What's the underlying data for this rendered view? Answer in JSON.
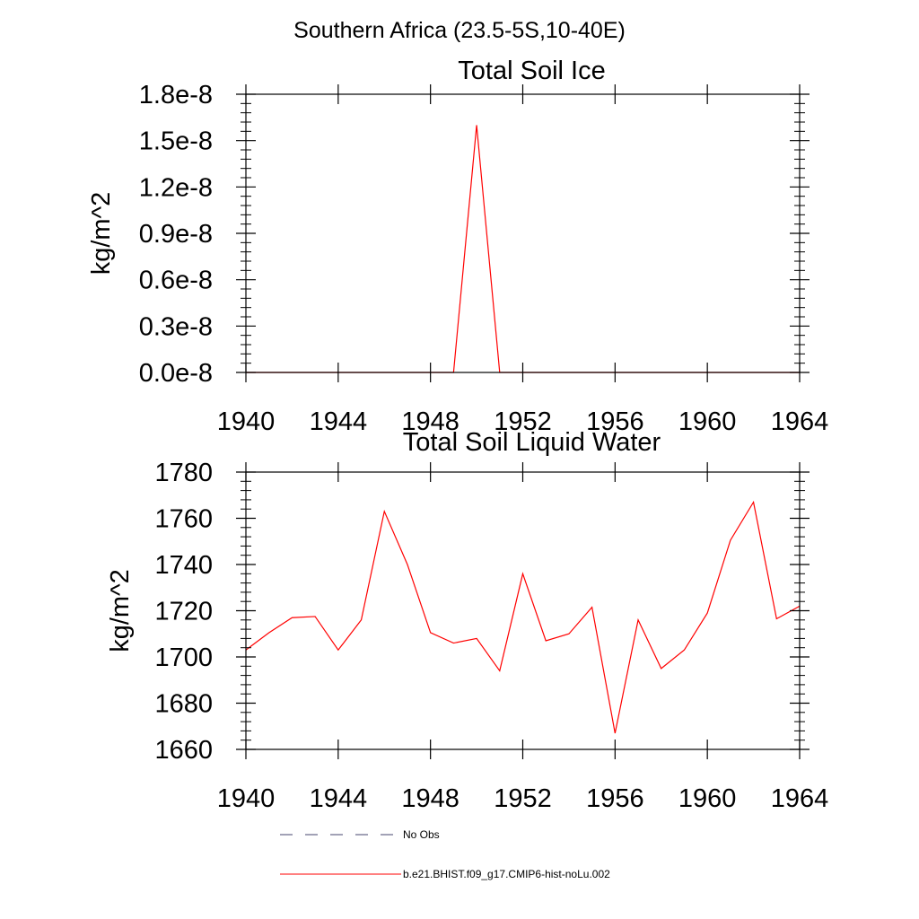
{
  "figure_title": "Southern Africa (23.5-5S,10-40E)",
  "legend": {
    "items": [
      {
        "label": "No Obs",
        "style": "dashed",
        "color": "#44446e"
      },
      {
        "label": "b.e21.BHIST.f09_g17.CMIP6-hist-noLu.002",
        "style": "solid",
        "color": "#ff0000"
      }
    ]
  },
  "chart_data": [
    {
      "type": "line",
      "title": "Total Soil Ice",
      "xlabel": "",
      "ylabel": "kg/m^2",
      "xlim": [
        1940,
        1964
      ],
      "ylim": [
        0,
        1.8e-08
      ],
      "xticks": [
        1940,
        1944,
        1948,
        1952,
        1956,
        1960,
        1964
      ],
      "xtick_labels": [
        "1940",
        "1944",
        "1948",
        "1952",
        "1956",
        "1960",
        "1964"
      ],
      "yticks": [
        0,
        3e-09,
        6e-09,
        9e-09,
        1.2e-08,
        1.5e-08,
        1.8e-08
      ],
      "ytick_labels": [
        "0.0e-8",
        "0.3e-8",
        "0.6e-8",
        "0.9e-8",
        "1.2e-8",
        "1.5e-8",
        "1.8e-8"
      ],
      "series": [
        {
          "color": "#ff0000",
          "x": [
            1940,
            1941,
            1942,
            1943,
            1944,
            1945,
            1946,
            1947,
            1948,
            1949,
            1950,
            1951,
            1952,
            1953,
            1954,
            1955,
            1956,
            1957,
            1958,
            1959,
            1960,
            1961,
            1962,
            1963,
            1964
          ],
          "y": [
            0,
            0,
            0,
            0,
            0,
            0,
            0,
            0,
            0,
            0,
            1.6e-08,
            0,
            0,
            0,
            0,
            0,
            0,
            0,
            0,
            0,
            0,
            0,
            0,
            0,
            0
          ]
        }
      ]
    },
    {
      "type": "line",
      "title": "Total Soil Liquid Water",
      "xlabel": "",
      "ylabel": "kg/m^2",
      "xlim": [
        1940,
        1964
      ],
      "ylim": [
        1660,
        1780
      ],
      "xticks": [
        1940,
        1944,
        1948,
        1952,
        1956,
        1960,
        1964
      ],
      "xtick_labels": [
        "1940",
        "1944",
        "1948",
        "1952",
        "1956",
        "1960",
        "1964"
      ],
      "yticks": [
        1660,
        1680,
        1700,
        1720,
        1740,
        1760,
        1780
      ],
      "ytick_labels": [
        "1660",
        "1680",
        "1700",
        "1720",
        "1740",
        "1760",
        "1780"
      ],
      "series": [
        {
          "color": "#ff0000",
          "x": [
            1940,
            1941,
            1942,
            1943,
            1944,
            1945,
            1946,
            1947,
            1948,
            1949,
            1950,
            1951,
            1952,
            1953,
            1954,
            1955,
            1956,
            1957,
            1958,
            1959,
            1960,
            1961,
            1962,
            1963,
            1964
          ],
          "y": [
            1703,
            1710.5,
            1717,
            1717.5,
            1703,
            1716,
            1763,
            1740,
            1710.5,
            1706,
            1708,
            1694,
            1736,
            1707,
            1710,
            1721.5,
            1667,
            1716,
            1695,
            1703,
            1719,
            1750.5,
            1767,
            1716.5,
            1722
          ]
        }
      ]
    }
  ]
}
